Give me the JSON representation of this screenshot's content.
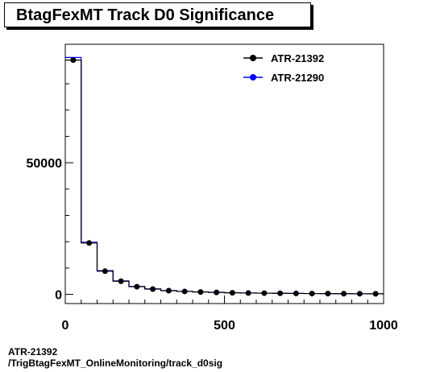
{
  "header": {
    "title": "BtagFexMT Track D0 Significance"
  },
  "footer": {
    "line1": "ATR-21392",
    "line2": "/TrigBtagFexMT_OnlineMonitoring/track_d0sig"
  },
  "colors": {
    "series1": "#000000",
    "series2": "#0000ff"
  },
  "chart_data": {
    "type": "line",
    "title": "BtagFexMT Track D0 Significance",
    "xlabel": "",
    "ylabel": "",
    "xlim": [
      0,
      1000
    ],
    "ylim": [
      -3500,
      95000
    ],
    "x_ticks": [
      0,
      500,
      1000
    ],
    "x_tick_labels": [
      "0",
      "500",
      "1000"
    ],
    "y_ticks": [
      0,
      50000
    ],
    "y_tick_labels": [
      "0",
      "50000"
    ],
    "grid": false,
    "legend_position": "top-right",
    "bin_edges": [
      0,
      50,
      100,
      150,
      200,
      250,
      300,
      350,
      400,
      450,
      500,
      550,
      600,
      650,
      700,
      750,
      800,
      850,
      900,
      950,
      1000
    ],
    "x": [
      25,
      75,
      125,
      175,
      225,
      275,
      325,
      375,
      425,
      475,
      525,
      575,
      625,
      675,
      725,
      775,
      825,
      875,
      925,
      975
    ],
    "series": [
      {
        "name": "ATR-21392",
        "style": "markers",
        "values": [
          89000,
          19500,
          8800,
          5000,
          2900,
          2000,
          1400,
          1100,
          900,
          750,
          600,
          500,
          450,
          400,
          350,
          300,
          280,
          250,
          230,
          210
        ]
      },
      {
        "name": "ATR-21290",
        "style": "histogram",
        "values": [
          90000,
          19800,
          9000,
          5100,
          3000,
          2100,
          1450,
          1150,
          950,
          780,
          620,
          520,
          460,
          410,
          360,
          310,
          285,
          255,
          235,
          215
        ]
      }
    ]
  }
}
